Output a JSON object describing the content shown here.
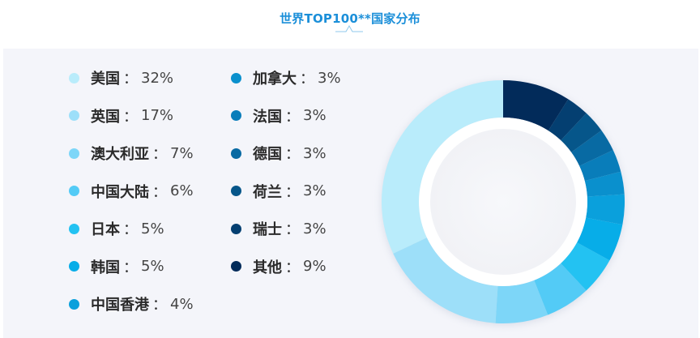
{
  "title": "世界TOP100**国家分布",
  "separator": "：",
  "legend": [
    {
      "name": "美国",
      "value": "32%",
      "percent": 32,
      "color": "#b9ecfb"
    },
    {
      "name": "英国",
      "value": "17%",
      "percent": 17,
      "color": "#9ddff9"
    },
    {
      "name": "澳大利亚",
      "value": "7%",
      "percent": 7,
      "color": "#7dd6f8"
    },
    {
      "name": "中国大陆",
      "value": "6%",
      "percent": 6,
      "color": "#53cbf6"
    },
    {
      "name": "日本",
      "value": "5%",
      "percent": 5,
      "color": "#23c2f2"
    },
    {
      "name": "韩国",
      "value": "5%",
      "percent": 5,
      "color": "#07ade8"
    },
    {
      "name": "中国香港",
      "value": "4%",
      "percent": 4,
      "color": "#0aa0dc"
    },
    {
      "name": "加拿大",
      "value": "3%",
      "percent": 3,
      "color": "#0a90cd"
    },
    {
      "name": "法国",
      "value": "3%",
      "percent": 3,
      "color": "#097dba"
    },
    {
      "name": "德国",
      "value": "3%",
      "percent": 3,
      "color": "#086aa3"
    },
    {
      "name": "荷兰",
      "value": "3%",
      "percent": 3,
      "color": "#06568a"
    },
    {
      "name": "瑞士",
      "value": "3%",
      "percent": 3,
      "color": "#043f71"
    },
    {
      "name": "其他",
      "value": "9%",
      "percent": 9,
      "color": "#022b5a"
    }
  ],
  "chart_data": {
    "type": "pie",
    "title": "世界TOP100**国家分布",
    "categories": [
      "美国",
      "英国",
      "澳大利亚",
      "中国大陆",
      "日本",
      "韩国",
      "中国香港",
      "加拿大",
      "法国",
      "德国",
      "荷兰",
      "瑞士",
      "其他"
    ],
    "values": [
      32,
      17,
      7,
      6,
      5,
      5,
      4,
      3,
      3,
      3,
      3,
      3,
      9
    ],
    "donut": true,
    "legend": "left"
  }
}
